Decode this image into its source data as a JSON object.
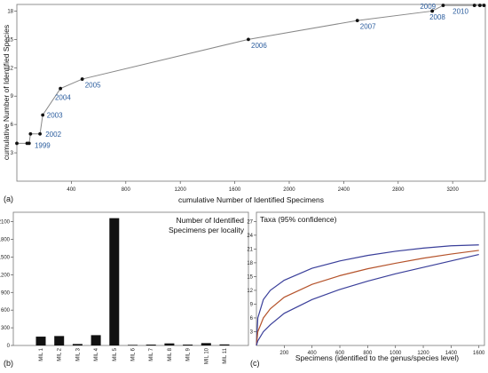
{
  "panels": {
    "a": "(a)",
    "b": "(b)",
    "c": "(c)"
  },
  "chart_data": [
    {
      "type": "line",
      "panel": "a",
      "xlabel": "cumulative Number of Identified Specimens",
      "ylabel": "cumulative Number of Identified Species",
      "xlim": [
        0,
        3440
      ],
      "ylim": [
        0,
        18.7
      ],
      "x_ticks": [
        400,
        800,
        1200,
        1600,
        2000,
        2400,
        2800,
        3200
      ],
      "y_ticks": [
        3,
        6,
        9,
        12,
        15,
        18
      ],
      "points": [
        {
          "x": 0,
          "y": 4
        },
        {
          "x": 75,
          "y": 4
        },
        {
          "x": 90,
          "y": 4
        },
        {
          "x": 100,
          "y": 5
        },
        {
          "x": 170,
          "y": 5
        },
        {
          "x": 190,
          "y": 7
        },
        {
          "x": 320,
          "y": 9.8
        },
        {
          "x": 480,
          "y": 10.8
        },
        {
          "x": 1700,
          "y": 15
        },
        {
          "x": 2500,
          "y": 17
        },
        {
          "x": 3050,
          "y": 18
        },
        {
          "x": 3130,
          "y": 18.6
        },
        {
          "x": 3360,
          "y": 18.6
        },
        {
          "x": 3400,
          "y": 18.6
        },
        {
          "x": 3430,
          "y": 18.6
        }
      ],
      "annotations": [
        {
          "label": "1999",
          "x": 130,
          "y": 3.8
        },
        {
          "label": "2002",
          "x": 210,
          "y": 5
        },
        {
          "label": "2003",
          "x": 220,
          "y": 7
        },
        {
          "label": "2004",
          "x": 280,
          "y": 8.9
        },
        {
          "label": "2005",
          "x": 500,
          "y": 10.2
        },
        {
          "label": "2006",
          "x": 1720,
          "y": 14.4
        },
        {
          "label": "2007",
          "x": 2520,
          "y": 16.4
        },
        {
          "label": "2008",
          "x": 3030,
          "y": 17.4
        },
        {
          "label": "2009",
          "x": 2960,
          "y": 18.5
        },
        {
          "label": "2010",
          "x": 3200,
          "y": 18
        }
      ]
    },
    {
      "type": "bar",
      "panel": "b",
      "title": "Number of Identified\nSpecimens per locality",
      "categories": [
        "MIL 1",
        "MIL 2",
        "MIL 3",
        "MIL 4",
        "MIL 5",
        "MIL 6",
        "MIL 7",
        "MIL 8",
        "MIL 9",
        "MIL 10",
        "MIL 11"
      ],
      "values": [
        150,
        160,
        25,
        175,
        2160,
        10,
        15,
        35,
        15,
        40,
        18
      ],
      "ylim": [
        0,
        2200
      ],
      "y_ticks": [
        0,
        300,
        600,
        900,
        1200,
        1500,
        1800,
        2100
      ]
    },
    {
      "type": "line",
      "panel": "c",
      "title": "Taxa (95% confidence)",
      "xlabel": "Specimens (identified to the genus/species level)",
      "xlim": [
        0,
        1640
      ],
      "ylim": [
        0,
        29
      ],
      "x_ticks": [
        200,
        400,
        600,
        800,
        1000,
        1200,
        1400,
        1600
      ],
      "y_ticks": [
        3,
        6,
        9,
        12,
        15,
        18,
        21,
        24,
        27
      ],
      "series": [
        {
          "role": "upper",
          "color": "#3a3f9a",
          "x": [
            0,
            10,
            50,
            100,
            200,
            400,
            600,
            800,
            1000,
            1200,
            1400,
            1600
          ],
          "y": [
            0,
            6,
            10,
            12,
            14.2,
            16.8,
            18.4,
            19.6,
            20.5,
            21.2,
            21.7,
            21.9
          ]
        },
        {
          "role": "estimate",
          "color": "#b5532b",
          "x": [
            0,
            10,
            50,
            100,
            200,
            400,
            600,
            800,
            1000,
            1200,
            1400,
            1600
          ],
          "y": [
            0,
            3,
            6,
            8,
            10.5,
            13.3,
            15.2,
            16.7,
            17.9,
            19,
            19.9,
            20.7
          ]
        },
        {
          "role": "lower",
          "color": "#3a3f9a",
          "x": [
            0,
            10,
            50,
            100,
            200,
            400,
            600,
            800,
            1000,
            1200,
            1400,
            1600
          ],
          "y": [
            0,
            1,
            3,
            4.5,
            7,
            10,
            12.2,
            14,
            15.6,
            17,
            18.4,
            19.8
          ]
        }
      ]
    }
  ]
}
